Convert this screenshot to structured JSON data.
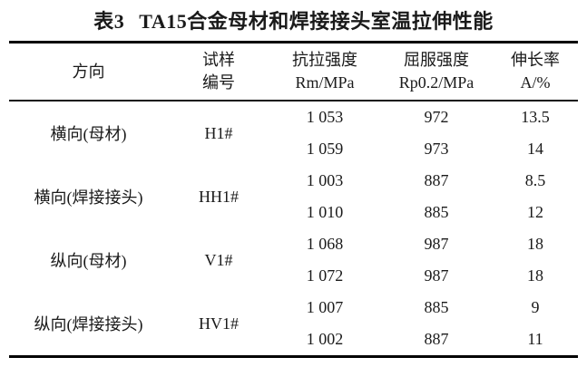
{
  "title": {
    "label": "表3",
    "text": "TA15合金母材和焊接接头室温拉伸性能"
  },
  "table": {
    "headers": [
      {
        "line1": "方向",
        "line2": ""
      },
      {
        "line1": "试样",
        "line2": "编号"
      },
      {
        "line1": "抗拉强度",
        "line2": "Rm/MPa"
      },
      {
        "line1": "屈服强度",
        "line2": "Rp0.2/MPa"
      },
      {
        "line1": "伸长率",
        "line2": "A/%"
      }
    ],
    "groups": [
      {
        "direction": "横向(母材)",
        "sample": "H1#",
        "rows": [
          {
            "rm": "1 053",
            "rp": "972",
            "a": "13.5"
          },
          {
            "rm": "1 059",
            "rp": "973",
            "a": "14"
          }
        ]
      },
      {
        "direction": "横向(焊接接头)",
        "sample": "HH1#",
        "rows": [
          {
            "rm": "1 003",
            "rp": "887",
            "a": "8.5"
          },
          {
            "rm": "1 010",
            "rp": "885",
            "a": "12"
          }
        ]
      },
      {
        "direction": "纵向(母材)",
        "sample": "V1#",
        "rows": [
          {
            "rm": "1 068",
            "rp": "987",
            "a": "18"
          },
          {
            "rm": "1 072",
            "rp": "987",
            "a": "18"
          }
        ]
      },
      {
        "direction": "纵向(焊接接头)",
        "sample": "HV1#",
        "rows": [
          {
            "rm": "1 007",
            "rp": "885",
            "a": "9"
          },
          {
            "rm": "1 002",
            "rp": "887",
            "a": "11"
          }
        ]
      }
    ]
  },
  "colors": {
    "text": "#1a1a1a",
    "rule_heavy": "#000000",
    "rule_light": "#111111",
    "background": "#ffffff"
  }
}
